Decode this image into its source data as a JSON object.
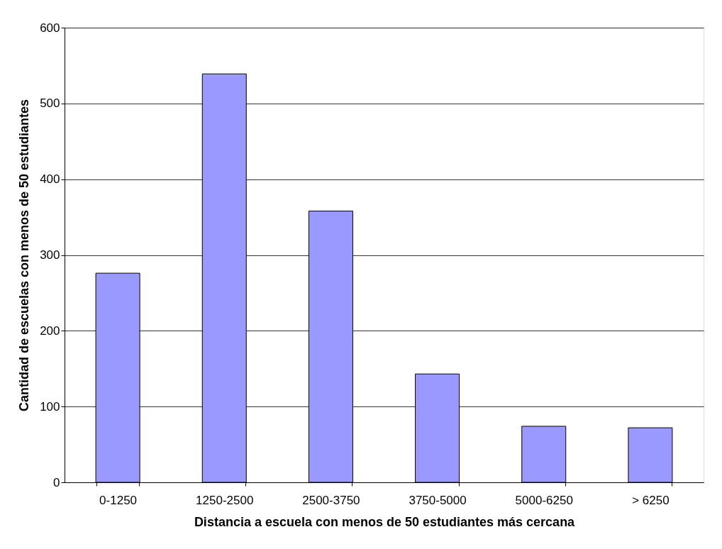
{
  "chart_data": {
    "type": "bar",
    "categories": [
      "0-1250",
      "1250-2500",
      "2500-3750",
      "3750-5000",
      "5000-6250",
      "> 6250"
    ],
    "values": [
      276,
      539,
      358,
      143,
      74,
      72
    ],
    "color": "#9999ff",
    "xlabel": "Distancia a escuela con menos de 50 estudiantes más cercana",
    "ylabel": "Cantidad de escuelas con menos de 50 estudiantes",
    "ylim": [
      0,
      600
    ],
    "yticks": [
      0,
      100,
      200,
      300,
      400,
      500,
      600
    ],
    "grid": "y"
  }
}
